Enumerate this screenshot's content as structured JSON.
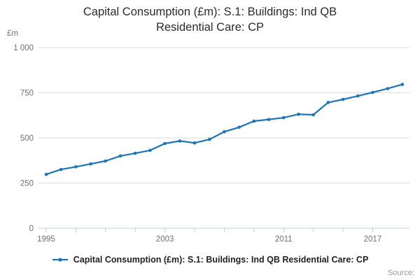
{
  "title": "Capital Consumption (£m): S.1: Buildings: Ind QB Residential Care: CP",
  "y_axis": {
    "unit_label": "£m",
    "tick_values": [
      0,
      250,
      500,
      750,
      1000
    ],
    "tick_labels": [
      "0",
      "250",
      "500",
      "750",
      "1 000"
    ]
  },
  "x_axis": {
    "tick_years": [
      1995,
      1997,
      1999,
      2001,
      2003,
      2005,
      2007,
      2009,
      2011,
      2013,
      2015,
      2017
    ],
    "labeled_years": [
      1995,
      2003,
      2011,
      2017
    ]
  },
  "legend": {
    "label": "Capital Consumption (£m): S.1: Buildings: Ind QB Residential Care: CP"
  },
  "source_label": "Source:",
  "colors": {
    "line": "#1b75bb",
    "grid": "#dcdcdc",
    "axis": "#c3cde0",
    "tick_text": "#6f6f71",
    "title_text": "#2b2b2b",
    "legend_text": "#1f1f1f",
    "source_text": "#9a9a9a"
  },
  "chart_data": {
    "type": "line",
    "title": "Capital Consumption (£m): S.1: Buildings: Ind QB Residential Care: CP",
    "xlabel": "",
    "ylabel": "£m",
    "ylim": [
      0,
      1000
    ],
    "xlim": [
      1995,
      2019
    ],
    "grid": "horizontal",
    "legend_position": "bottom",
    "marker": "dot",
    "x": [
      1995,
      1996,
      1997,
      1998,
      1999,
      2000,
      2001,
      2002,
      2003,
      2004,
      2005,
      2006,
      2007,
      2008,
      2009,
      2010,
      2011,
      2012,
      2013,
      2014,
      2015,
      2016,
      2017,
      2018,
      2019
    ],
    "values": [
      298,
      325,
      340,
      356,
      372,
      400,
      415,
      431,
      469,
      483,
      472,
      492,
      534,
      559,
      593,
      602,
      612,
      631,
      628,
      696,
      713,
      732,
      752,
      773,
      796
    ]
  }
}
